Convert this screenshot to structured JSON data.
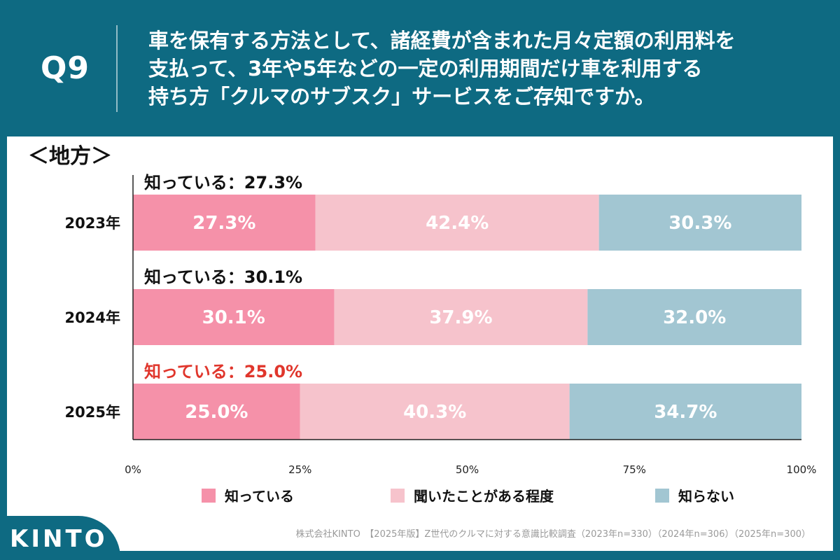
{
  "header": {
    "q_label": "Q9",
    "question_lines": [
      "車を保有する方法として、諸経費が含まれた月々定額の利用料を",
      "支払って、3年や5年などの一定の利用期間だけ車を利用する",
      "持ち方「クルマのサブスク」サービスをご存知ですか。"
    ]
  },
  "footer": {
    "source": "株式会社KINTO　【2025年版】Z世代のクルマに対する意識比較調査（2023年n=330）（2024年n=306）（2025年n=300）",
    "logo_text": "KINTO"
  },
  "colors": {
    "header_bg": "#0e6a82",
    "know": "#f591a9",
    "heard": "#f6c3cc",
    "dont_know": "#a2c6d2",
    "highlight_red": "#e0362c"
  },
  "chart_data": {
    "type": "bar",
    "orientation": "horizontal-stacked-100",
    "title": "＜地方＞",
    "categories": [
      "2023年",
      "2024年",
      "2025年"
    ],
    "series": [
      {
        "name": "知っている",
        "values": [
          27.3,
          30.1,
          25.0
        ],
        "labels": [
          "27.3%",
          "30.1%",
          "25.0%"
        ]
      },
      {
        "name": "聞いたことがある程度",
        "values": [
          42.4,
          37.9,
          40.3
        ],
        "labels": [
          "42.4%",
          "37.9%",
          "40.3%"
        ]
      },
      {
        "name": "知らない",
        "values": [
          30.3,
          32.0,
          34.7
        ],
        "labels": [
          "30.3%",
          "32.0%",
          "34.7%"
        ]
      }
    ],
    "annotations": [
      "知っている：27.3%",
      "知っている：30.1%",
      "知っている：25.0%"
    ],
    "highlight_index": 2,
    "x_ticks": [
      "0%",
      "25%",
      "50%",
      "75%",
      "100%"
    ],
    "xlim": [
      0,
      100
    ],
    "legend": [
      "知っている",
      "聞いたことがある程度",
      "知らない"
    ],
    "legend_position": "bottom"
  }
}
